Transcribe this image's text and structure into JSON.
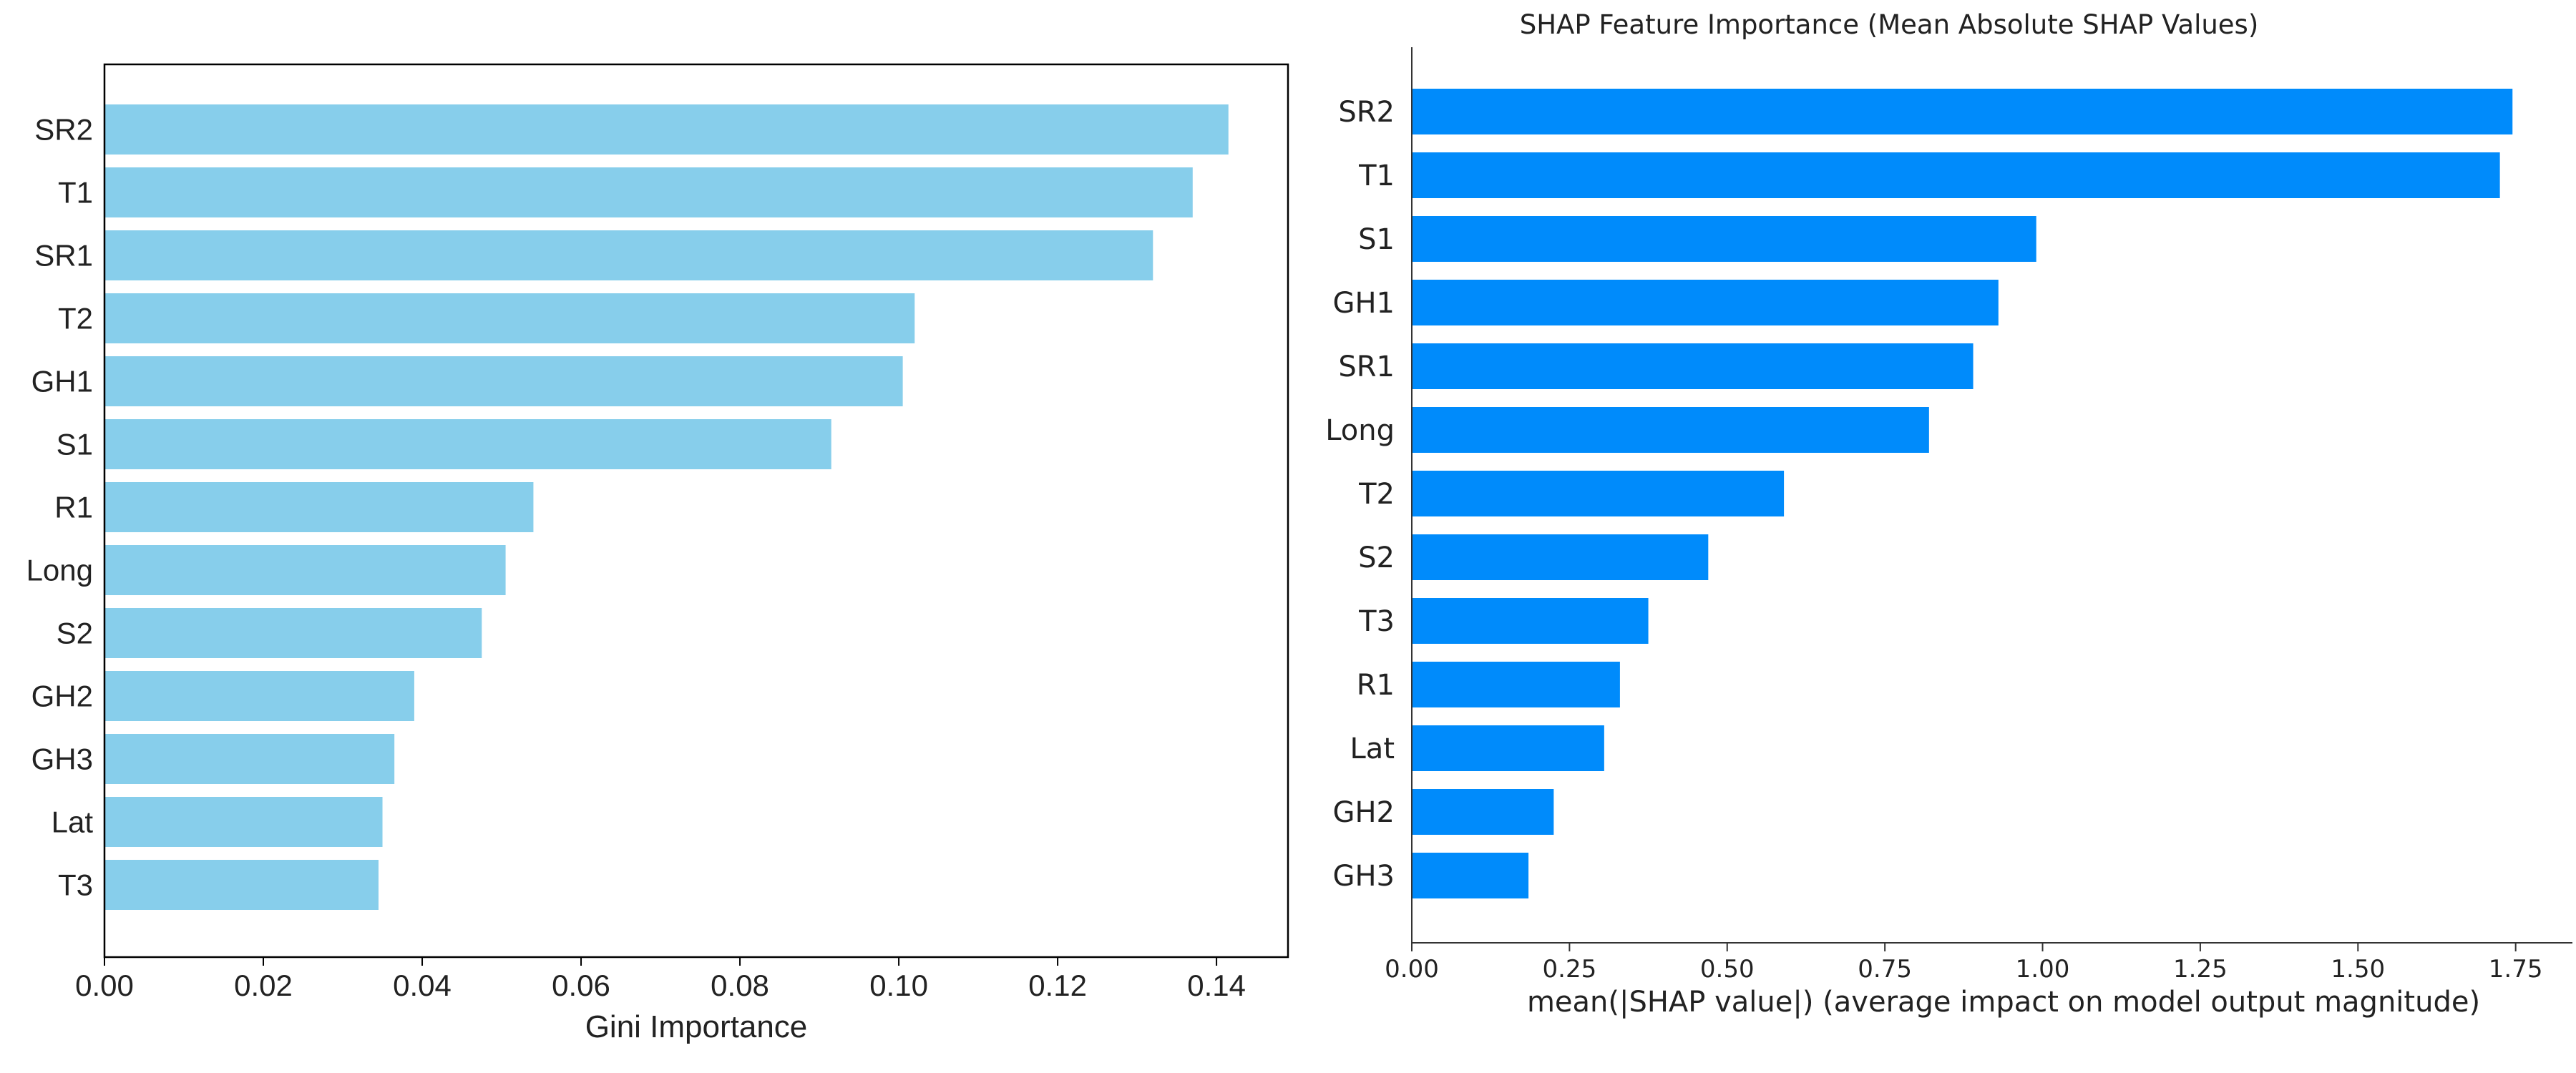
{
  "colors": {
    "gini_bar": "#87CEEB",
    "shap_bar": "#008BFB",
    "axis": "#000000",
    "shap_axis": "#333333",
    "text": "#222222"
  },
  "chart_data": [
    {
      "type": "bar",
      "orientation": "horizontal",
      "title": "",
      "xlabel": "Gini Importance",
      "ylabel": "",
      "xlim": [
        0,
        0.149
      ],
      "xticks": [
        "0.00",
        "0.02",
        "0.04",
        "0.06",
        "0.08",
        "0.10",
        "0.12",
        "0.14"
      ],
      "categories": [
        "SR2",
        "T1",
        "SR1",
        "T2",
        "GH1",
        "S1",
        "R1",
        "Long",
        "S2",
        "GH2",
        "GH3",
        "Lat",
        "T3"
      ],
      "values": [
        0.1415,
        0.137,
        0.132,
        0.102,
        0.1005,
        0.0915,
        0.054,
        0.0505,
        0.0475,
        0.039,
        0.0365,
        0.035,
        0.0345
      ],
      "grid": false,
      "frame": "box"
    },
    {
      "type": "bar",
      "orientation": "horizontal",
      "title": "SHAP Feature Importance (Mean Absolute SHAP Values)",
      "xlabel": "mean(|SHAP value|) (average impact on model output magnitude)",
      "ylabel": "",
      "xlim": [
        0,
        1.84
      ],
      "xticks": [
        "0.00",
        "0.25",
        "0.50",
        "0.75",
        "1.00",
        "1.25",
        "1.50",
        "1.75"
      ],
      "categories": [
        "SR2",
        "T1",
        "S1",
        "GH1",
        "SR1",
        "Long",
        "T2",
        "S2",
        "T3",
        "R1",
        "Lat",
        "GH2",
        "GH3"
      ],
      "values": [
        1.745,
        1.725,
        0.99,
        0.93,
        0.89,
        0.82,
        0.59,
        0.47,
        0.375,
        0.33,
        0.305,
        0.225,
        0.185
      ],
      "grid": false,
      "frame": "left-bottom"
    }
  ]
}
